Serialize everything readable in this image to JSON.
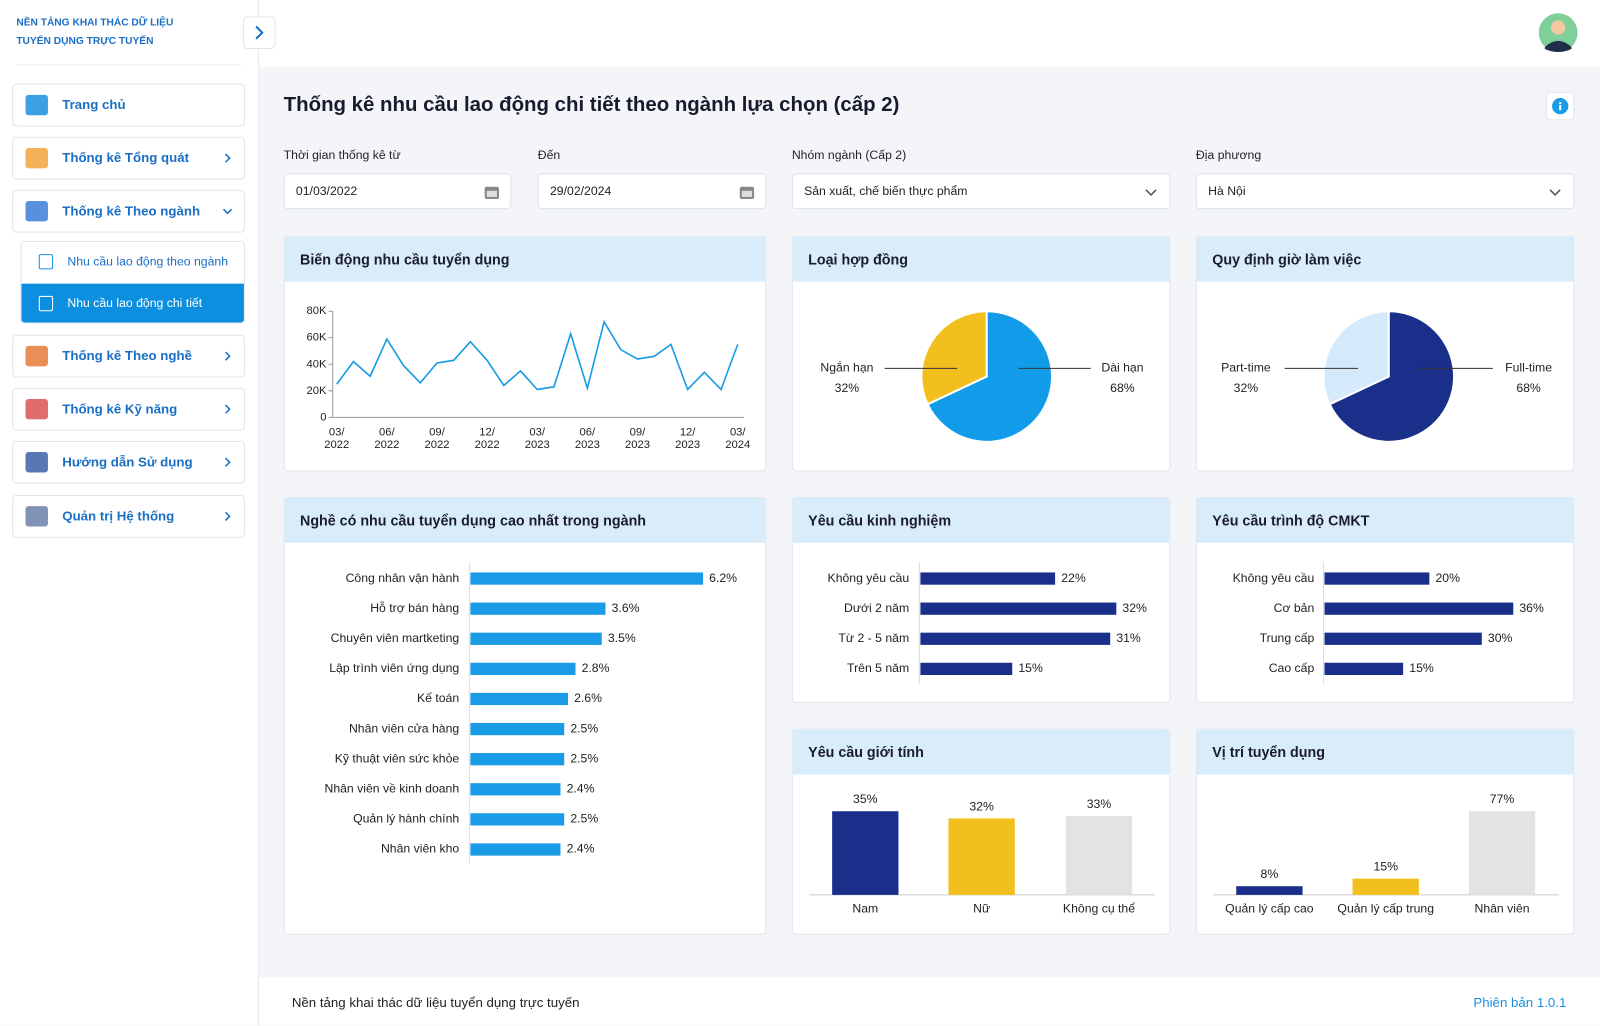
{
  "sidebar": {
    "brand": [
      "NỀN TẢNG KHAI THÁC DỮ LIỆU",
      "TUYỂN DỤNG TRỰC TUYẾN"
    ],
    "menu": [
      {
        "label": "Trang chủ"
      },
      {
        "label": "Thống kê Tổng quát"
      },
      {
        "label": "Thống kê Theo ngành",
        "children": [
          "Nhu cầu lao động theo ngành",
          "Nhu cầu lao động chi tiết"
        ]
      },
      {
        "label": "Thống kê Theo nghề"
      },
      {
        "label": "Thống kê Kỹ năng"
      },
      {
        "label": "Hướng dẫn Sử dụng"
      },
      {
        "label": "Quản trị Hệ thống"
      }
    ]
  },
  "header": {
    "title": "Thống kê nhu cầu lao động chi tiết theo ngành lựa chọn (cấp 2)"
  },
  "filters": [
    {
      "label": "Thời gian thống kê từ",
      "value": "01/03/2022"
    },
    {
      "label": "Đến",
      "value": "29/02/2024"
    },
    {
      "label": "Nhóm ngành (Cấp 2)",
      "value": "Sản xuất, chế biến thực phẩm"
    },
    {
      "label": "Địa phương",
      "value": "Hà Nội"
    }
  ],
  "chart_data": [
    {
      "type": "line",
      "title": "Biến động nhu cầu tuyển dụng",
      "categories": [
        "03/\n2022",
        null,
        null,
        "06/\n2022",
        null,
        null,
        "09/\n2022",
        null,
        null,
        "12/\n2022",
        null,
        null,
        "03/\n2023",
        null,
        null,
        "06/\n2023",
        null,
        null,
        "09/\n2023",
        null,
        null,
        "12/\n2023",
        null,
        null,
        "03/\n2024"
      ],
      "values": [
        25000,
        42000,
        31000,
        59000,
        39000,
        26000,
        41000,
        43000,
        57000,
        43000,
        24000,
        35000,
        21000,
        23000,
        63000,
        22000,
        72000,
        51000,
        44000,
        46000,
        55000,
        21000,
        34000,
        21000,
        55000
      ],
      "color": "#1a9be6",
      "ylim": [
        0,
        80000
      ],
      "yticks": [
        0,
        {
          "value": 20000,
          "label": "20K"
        },
        {
          "value": 40000,
          "label": "40K"
        },
        {
          "value": 60000,
          "label": "60K"
        },
        {
          "value": 80000,
          "label": "80K"
        }
      ]
    },
    {
      "type": "pie",
      "title": "Loại hợp đồng",
      "categories": [
        "Ngắn hạn",
        "Dài hạn"
      ],
      "values": [
        32,
        68
      ],
      "value_labels": [
        "32%",
        "68%"
      ],
      "colors": [
        "#f2c01e",
        "#129be8"
      ]
    },
    {
      "type": "pie",
      "title": "Quy định giờ làm việc",
      "categories": [
        "Part-time",
        "Full-time"
      ],
      "values": [
        32,
        68
      ],
      "value_labels": [
        "32%",
        "68%"
      ],
      "colors": [
        "#d4eafb",
        "#1a2f8a"
      ]
    },
    {
      "type": "barh",
      "title": "Nghề có nhu cầu tuyển dụng cao nhất trong ngành",
      "categories": [
        "Công nhân vận hành",
        "Hỗ trợ bán hàng",
        "Chuyên viên martketing",
        "Lập trình viên ứng dụng",
        "Kế toán",
        "Nhân viên cửa hàng",
        "Kỹ thuật viên sức khỏe",
        "Nhân viên về kinh doanh",
        "Quản lý hành chính",
        "Nhân viên kho"
      ],
      "values": [
        6.2,
        3.6,
        3.5,
        2.8,
        2.6,
        2.5,
        2.5,
        2.4,
        2.5,
        2.4
      ],
      "value_labels": [
        "6.2%",
        "3.6%",
        "3.5%",
        "2.8%",
        "2.6%",
        "2.5%",
        "2.5%",
        "2.4%",
        "2.5%",
        "2.4%"
      ],
      "color": "#1a9be6"
    },
    {
      "type": "barh",
      "title": "Yêu cầu kinh nghiệm",
      "categories": [
        "Không yêu cầu",
        "Dưới 2 năm",
        "Từ 2 - 5 năm",
        "Trên 5 năm"
      ],
      "values": [
        22,
        32,
        31,
        15
      ],
      "value_labels": [
        "22%",
        "32%",
        "31%",
        "15%"
      ],
      "color": "#1a2f8a"
    },
    {
      "type": "barh",
      "title": "Yêu cầu trình độ CMKT",
      "categories": [
        "Không yêu cầu",
        "Cơ bản",
        "Trung cấp",
        "Cao cấp"
      ],
      "values": [
        20,
        36,
        30,
        15
      ],
      "value_labels": [
        "20%",
        "36%",
        "30%",
        "15%"
      ],
      "color": "#1a2f8a"
    },
    {
      "type": "bar",
      "title": "Yêu cầu giới tính",
      "categories": [
        "Nam",
        "Nữ",
        "Không cụ thể"
      ],
      "values": [
        35,
        32,
        33
      ],
      "value_labels": [
        "35%",
        "32%",
        "33%"
      ],
      "colors": [
        "#1a2f8a",
        "#f2c01e",
        "#e3e3e3"
      ]
    },
    {
      "type": "bar",
      "title": "Vị trí tuyển dụng",
      "categories": [
        "Quản lý cấp cao",
        "Quản lý cấp trung",
        "Nhân viên"
      ],
      "values": [
        8,
        15,
        77
      ],
      "value_labels": [
        "8%",
        "15%",
        "77%"
      ],
      "colors": [
        "#1a2f8a",
        "#f2c01e",
        "#e3e3e3"
      ]
    }
  ],
  "footer": {
    "text": "Nền tảng khai thác dữ liệu tuyển dụng trực tuyến",
    "version": "Phiên bản 1.0.1"
  }
}
